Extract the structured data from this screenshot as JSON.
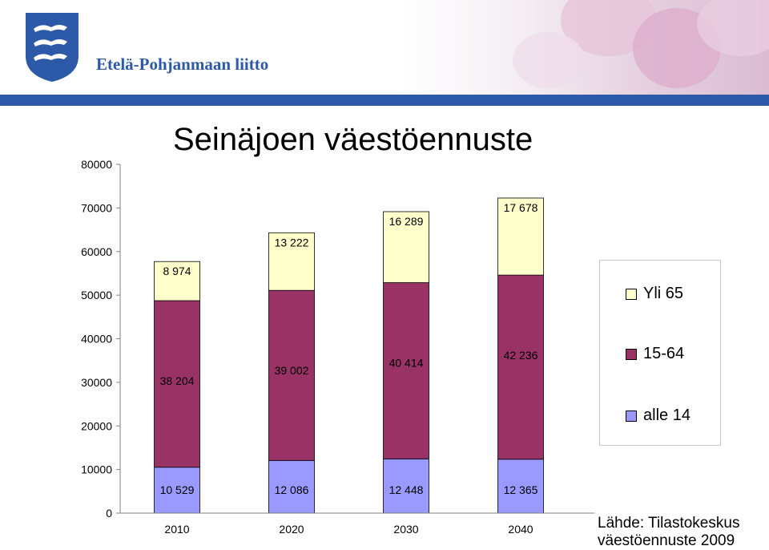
{
  "header": {
    "org_name": "Etelä-Pohjanmaan liitto",
    "logo_icon": "heraldic-shield-logo",
    "brand_color": "#2c5aa8"
  },
  "chart_data": {
    "type": "bar",
    "stacked": true,
    "title": "Seinäjoen väestöennuste",
    "categories": [
      "2010",
      "2020",
      "2030",
      "2040"
    ],
    "series": [
      {
        "name": "alle 14",
        "values": [
          10529,
          12086,
          12448,
          12365
        ],
        "labels": [
          "10 529",
          "12 086",
          "12 448",
          "12 365"
        ],
        "color": "#9999ff"
      },
      {
        "name": "15-64",
        "values": [
          38204,
          39002,
          40414,
          42236
        ],
        "labels": [
          "38 204",
          "39 002",
          "40 414",
          "42 236"
        ],
        "color": "#993366"
      },
      {
        "name": "Yli 65",
        "values": [
          8974,
          13222,
          16289,
          17678
        ],
        "labels": [
          "8 974",
          "13 222",
          "16 289",
          "17 678"
        ],
        "color": "#ffffcc"
      }
    ],
    "yticks": [
      "0",
      "10000",
      "20000",
      "30000",
      "40000",
      "50000",
      "60000",
      "70000",
      "80000"
    ],
    "ylim": [
      0,
      80000
    ],
    "xlabel": "",
    "ylabel": "",
    "grid": false,
    "legend_position": "right",
    "legend_order": [
      "Yli 65",
      "15-64",
      "alle 14"
    ]
  },
  "source": {
    "line1": "Lähde: Tilastokeskus",
    "line2": "väestöennuste 2009"
  }
}
